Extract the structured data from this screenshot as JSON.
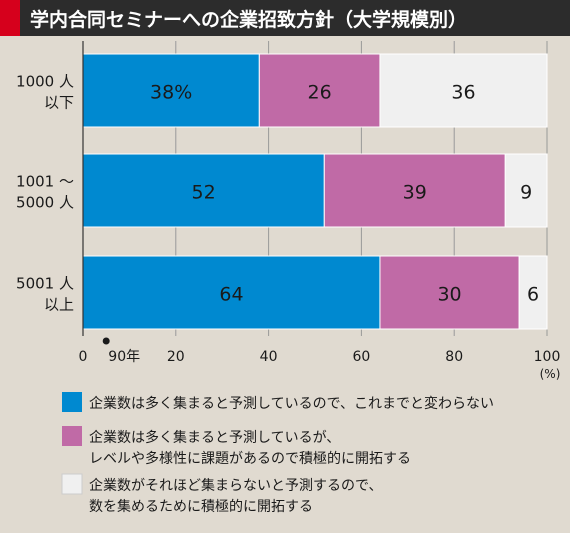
{
  "chart_data": {
    "type": "bar",
    "orientation": "horizontal",
    "stacked": true,
    "title": "学内合同セミナーへの企業招致方針（大学規模別）",
    "categories": [
      [
        "1000 人",
        "以下"
      ],
      [
        "1001 〜",
        "5000 人"
      ],
      [
        "5001 人",
        "以上"
      ]
    ],
    "series": [
      {
        "name": "企業数は多く集まると予測しているので、これまでと変わらない",
        "values": [
          38,
          52,
          64
        ],
        "labels": [
          "38%",
          "52",
          "64"
        ]
      },
      {
        "name": "企業数は多く集まると予測しているが、レベルや多様性に課題があるので積極的に開拓する",
        "values": [
          26,
          39,
          30
        ],
        "labels": [
          "26",
          "39",
          "30"
        ]
      },
      {
        "name": "企業数がそれほど集まらないと予測するので、数を集めるために積極的に開拓する",
        "values": [
          36,
          9,
          6
        ],
        "labels": [
          "36",
          "9",
          "6"
        ]
      }
    ],
    "legend_lines": [
      [
        "企業数は多く集まると予測しているので、これまでと変わらない"
      ],
      [
        "企業数は多く集まると予測しているが、",
        "レベルや多様性に課題があるので積極的に開拓する"
      ],
      [
        "企業数がそれほど集まらないと予測するので、",
        "数を集めるために積極的に開拓する"
      ]
    ],
    "xlim": [
      0,
      100
    ],
    "xticks": [
      0,
      20,
      40,
      60,
      80,
      100
    ],
    "xunit": "(%)",
    "marker": {
      "value": 5,
      "label": "90年"
    },
    "grid": true,
    "legend_position": "bottom"
  },
  "colors": {
    "background": "#e0dad0",
    "title_bar": "#2c2c2c",
    "title_square": "#d6001c",
    "title_text": "#ffffff",
    "series": [
      "#0089d0",
      "#c06aa6",
      "#f0f0f0"
    ],
    "grid": "#999999"
  }
}
